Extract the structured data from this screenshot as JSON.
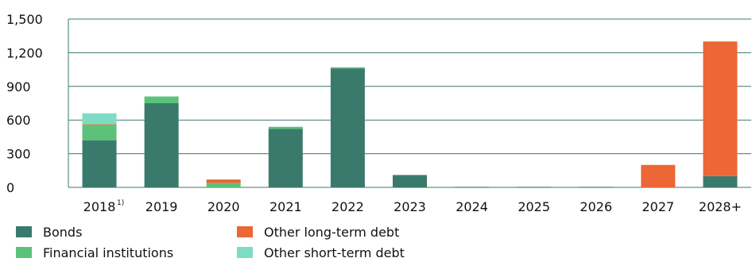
{
  "chart_data": {
    "type": "bar",
    "stacked": true,
    "categories": [
      "2018",
      "2019",
      "2020",
      "2021",
      "2022",
      "2023",
      "2024",
      "2025",
      "2026",
      "2027",
      "2028+"
    ],
    "category_footnotes": {
      "2018": "1)"
    },
    "ylim": [
      0,
      1500
    ],
    "yticks": [
      "0",
      "300",
      "600",
      "900",
      "1,200",
      "1,500"
    ],
    "ytick_values": [
      0,
      300,
      600,
      900,
      1200,
      1500
    ],
    "grid": true,
    "legend_position": "bottom-left",
    "series": [
      {
        "name": "Bonds",
        "color": "#3a7a6c",
        "values": [
          420,
          750,
          0,
          520,
          1060,
          110,
          5,
          5,
          5,
          0,
          100
        ]
      },
      {
        "name": "Financial institutions",
        "color": "#5cc27a",
        "values": [
          140,
          60,
          40,
          20,
          10,
          0,
          0,
          0,
          0,
          0,
          0
        ]
      },
      {
        "name": "Other long-term debt",
        "color": "#ec6636",
        "values": [
          5,
          0,
          30,
          0,
          0,
          0,
          0,
          0,
          0,
          200,
          1200
        ]
      },
      {
        "name": "Other short-term debt",
        "color": "#7ddcc4",
        "values": [
          95,
          0,
          0,
          0,
          0,
          0,
          0,
          0,
          0,
          0,
          0
        ]
      }
    ],
    "grid_color": "#3a7a6c"
  }
}
